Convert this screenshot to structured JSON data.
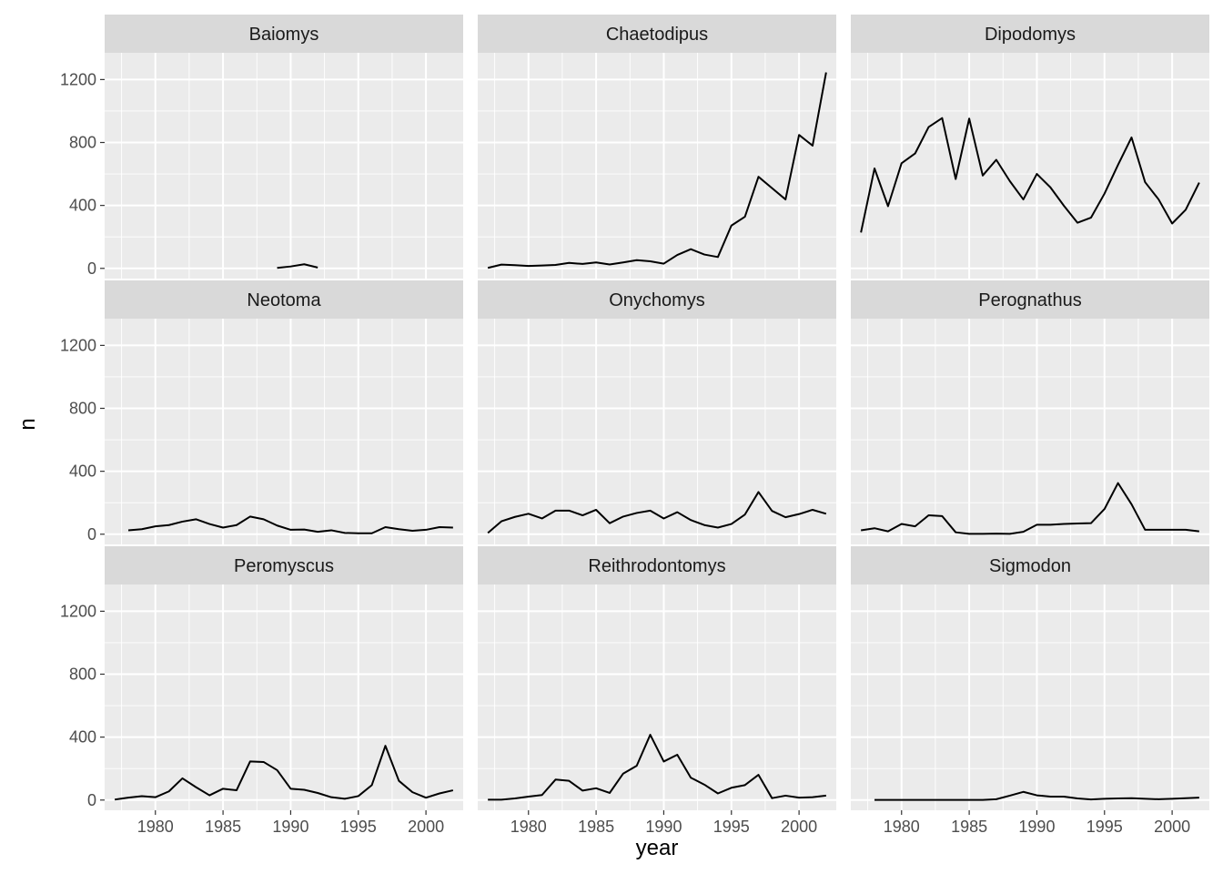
{
  "chart_data": {
    "type": "line",
    "facet_by": "genus",
    "xlabel": "year",
    "ylabel": "n",
    "xlim": [
      1976.25,
      2002.75
    ],
    "ylim": [
      -65,
      1370
    ],
    "x_ticks": [
      1980,
      1985,
      1990,
      1995,
      2000
    ],
    "x_tick_labels": [
      "1980",
      "1985",
      "1990",
      "1995",
      "2000"
    ],
    "y_ticks": [
      0,
      400,
      800,
      1200
    ],
    "y_tick_labels": [
      "0",
      "400",
      "800",
      "1200"
    ],
    "grid": true,
    "panels": [
      {
        "name": "Baiomys",
        "x": [
          1989,
          1990,
          1991,
          1992
        ],
        "y": [
          3,
          12,
          26,
          5
        ]
      },
      {
        "name": "Chaetodipus",
        "x": [
          1977,
          1978,
          1979,
          1980,
          1981,
          1982,
          1983,
          1984,
          1985,
          1986,
          1987,
          1988,
          1989,
          1990,
          1991,
          1992,
          1993,
          1994,
          1995,
          1996,
          1997,
          1998,
          1999,
          2000,
          2001,
          2002
        ],
        "y": [
          3,
          24,
          20,
          15,
          18,
          22,
          35,
          28,
          38,
          25,
          38,
          52,
          45,
          30,
          85,
          122,
          88,
          72,
          272,
          328,
          582,
          510,
          438,
          848,
          780,
          1245
        ]
      },
      {
        "name": "Dipodomys",
        "x": [
          1977,
          1978,
          1979,
          1980,
          1981,
          1982,
          1983,
          1984,
          1985,
          1986,
          1987,
          1988,
          1989,
          1990,
          1991,
          1992,
          1993,
          1994,
          1995,
          1996,
          1997,
          1998,
          1999,
          2000,
          2001,
          2002
        ],
        "y": [
          228,
          635,
          395,
          668,
          730,
          898,
          955,
          568,
          952,
          590,
          690,
          555,
          438,
          600,
          515,
          398,
          290,
          322,
          475,
          658,
          832,
          548,
          438,
          285,
          372,
          545
        ]
      },
      {
        "name": "Neotoma",
        "x": [
          1978,
          1979,
          1980,
          1981,
          1982,
          1983,
          1984,
          1985,
          1986,
          1987,
          1988,
          1989,
          1990,
          1991,
          1992,
          1993,
          1994,
          1995,
          1996,
          1997,
          1998,
          1999,
          2000,
          2001,
          2002
        ],
        "y": [
          25,
          32,
          50,
          58,
          80,
          95,
          65,
          42,
          58,
          112,
          95,
          55,
          28,
          30,
          15,
          25,
          8,
          6,
          6,
          45,
          32,
          22,
          28,
          45,
          42
        ]
      },
      {
        "name": "Onychomys",
        "x": [
          1977,
          1978,
          1979,
          1980,
          1981,
          1982,
          1983,
          1984,
          1985,
          1986,
          1987,
          1988,
          1989,
          1990,
          1991,
          1992,
          1993,
          1994,
          1995,
          1996,
          1997,
          1998,
          1999,
          2000,
          2001,
          2002
        ],
        "y": [
          8,
          82,
          110,
          130,
          100,
          150,
          150,
          120,
          155,
          70,
          112,
          135,
          150,
          100,
          140,
          90,
          58,
          42,
          65,
          125,
          268,
          148,
          108,
          128,
          155,
          130
        ]
      },
      {
        "name": "Perognathus",
        "x": [
          1977,
          1978,
          1979,
          1980,
          1981,
          1982,
          1983,
          1984,
          1985,
          1986,
          1987,
          1988,
          1989,
          1990,
          1991,
          1992,
          1993,
          1994,
          1995,
          1996,
          1997,
          1998,
          1999,
          2000,
          2001,
          2002
        ],
        "y": [
          25,
          38,
          18,
          65,
          50,
          120,
          115,
          12,
          2,
          2,
          4,
          2,
          15,
          60,
          60,
          65,
          68,
          70,
          160,
          325,
          190,
          28,
          28,
          28,
          28,
          18
        ]
      },
      {
        "name": "Peromyscus",
        "x": [
          1977,
          1978,
          1979,
          1980,
          1981,
          1982,
          1983,
          1984,
          1985,
          1986,
          1987,
          1988,
          1989,
          1990,
          1991,
          1992,
          1993,
          1994,
          1995,
          1996,
          1997,
          1998,
          1999,
          2000,
          2001,
          2002
        ],
        "y": [
          3,
          15,
          25,
          18,
          55,
          138,
          82,
          30,
          72,
          62,
          245,
          242,
          190,
          72,
          65,
          45,
          18,
          8,
          25,
          95,
          345,
          122,
          50,
          15,
          42,
          62
        ]
      },
      {
        "name": "Reithrodontomys",
        "x": [
          1977,
          1978,
          1979,
          1980,
          1981,
          1982,
          1983,
          1984,
          1985,
          1986,
          1987,
          1988,
          1989,
          1990,
          1991,
          1992,
          1993,
          1994,
          1995,
          1996,
          1997,
          1998,
          1999,
          2000,
          2001,
          2002
        ],
        "y": [
          2,
          2,
          10,
          22,
          32,
          130,
          122,
          60,
          75,
          45,
          168,
          218,
          415,
          245,
          288,
          142,
          98,
          42,
          78,
          95,
          160,
          12,
          28,
          15,
          18,
          28
        ]
      },
      {
        "name": "Sigmodon",
        "x": [
          1978,
          1979,
          1980,
          1981,
          1982,
          1983,
          1984,
          1985,
          1986,
          1987,
          1988,
          1989,
          1990,
          1991,
          1992,
          1993,
          1994,
          1995,
          1996,
          1997,
          1998,
          1999,
          2000,
          2001,
          2002
        ],
        "y": [
          1,
          1,
          1,
          1,
          1,
          1,
          1,
          1,
          1,
          5,
          28,
          52,
          30,
          22,
          22,
          10,
          4,
          8,
          10,
          12,
          8,
          5,
          8,
          12,
          15
        ]
      }
    ]
  },
  "colors": {
    "panel_background": "#ebebeb",
    "strip_background": "#d9d9d9",
    "major_grid": "#ffffff",
    "line": "#000000",
    "tick": "#333333"
  }
}
